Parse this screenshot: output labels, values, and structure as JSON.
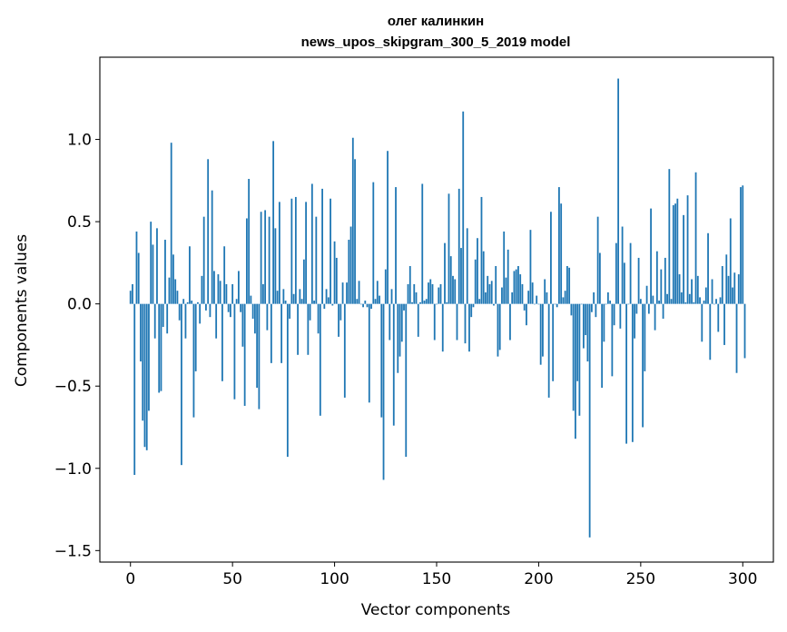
{
  "chart_data": {
    "type": "bar",
    "title": "олег калинкин",
    "subtitle": "news_upos_skipgram_300_5_2019 model",
    "xlabel": "Vector components",
    "ylabel": "Components values",
    "xlim": [
      -15,
      315
    ],
    "ylim": [
      -1.57,
      1.5
    ],
    "x_ticks": [
      0,
      50,
      100,
      150,
      200,
      250,
      300
    ],
    "y_ticks": [
      -1.5,
      -1.0,
      -0.5,
      0.0,
      0.5,
      1.0
    ],
    "y_tick_labels": [
      "−1.5",
      "−1.0",
      "−0.5",
      "0.0",
      "0.5",
      "1.0"
    ],
    "bar_color": "#1f77b4",
    "values": [
      0.08,
      0.12,
      -1.04,
      0.44,
      0.31,
      -0.35,
      -0.71,
      -0.87,
      -0.89,
      -0.65,
      0.5,
      0.36,
      -0.21,
      0.46,
      -0.54,
      -0.53,
      -0.14,
      0.39,
      -0.18,
      0.16,
      0.98,
      0.3,
      0.15,
      0.08,
      -0.1,
      -0.98,
      0.03,
      -0.21,
      0.01,
      0.35,
      0.02,
      -0.69,
      -0.41,
      0.01,
      -0.12,
      0.17,
      0.53,
      -0.04,
      0.88,
      -0.08,
      0.69,
      0.2,
      -0.21,
      0.18,
      0.14,
      -0.47,
      0.35,
      0.12,
      -0.05,
      -0.08,
      0.12,
      -0.58,
      0.03,
      0.2,
      -0.05,
      -0.26,
      -0.62,
      0.52,
      0.76,
      0.05,
      -0.09,
      -0.18,
      -0.51,
      -0.64,
      0.56,
      0.12,
      0.57,
      -0.16,
      0.53,
      -0.36,
      0.99,
      0.46,
      0.08,
      0.62,
      -0.36,
      0.09,
      0.02,
      -0.93,
      -0.09,
      0.64,
      0.06,
      0.65,
      -0.31,
      0.09,
      0.03,
      0.27,
      0.62,
      -0.31,
      -0.1,
      0.73,
      0.02,
      0.53,
      -0.18,
      -0.68,
      0.7,
      -0.03,
      0.09,
      0.04,
      0.64,
      -0.01,
      0.38,
      0.28,
      -0.2,
      -0.1,
      0.13,
      -0.57,
      0.13,
      0.39,
      0.47,
      1.01,
      0.88,
      0.03,
      0.14,
      0.0,
      -0.02,
      0.02,
      -0.02,
      -0.6,
      -0.03,
      0.74,
      0.03,
      0.14,
      0.05,
      -0.69,
      -1.07,
      0.21,
      0.93,
      -0.22,
      0.09,
      -0.74,
      0.71,
      -0.42,
      -0.32,
      -0.23,
      -0.04,
      -0.93,
      0.12,
      0.23,
      0.01,
      0.12,
      0.07,
      -0.2,
      0.01,
      0.73,
      0.02,
      0.03,
      0.13,
      0.15,
      0.12,
      -0.22,
      0.0,
      0.1,
      0.12,
      -0.29,
      0.37,
      0.01,
      0.67,
      0.29,
      0.17,
      0.15,
      -0.22,
      0.7,
      0.34,
      1.17,
      -0.24,
      0.46,
      -0.29,
      -0.08,
      -0.02,
      0.27,
      0.4,
      0.03,
      0.65,
      0.32,
      0.07,
      0.17,
      0.12,
      0.14,
      -0.01,
      0.23,
      -0.32,
      -0.28,
      0.1,
      0.44,
      0.16,
      0.33,
      -0.22,
      0.07,
      0.2,
      0.21,
      0.23,
      0.18,
      0.12,
      -0.04,
      -0.13,
      0.08,
      0.45,
      0.13,
      0.0,
      0.05,
      0.0,
      -0.37,
      -0.32,
      0.15,
      0.07,
      -0.57,
      0.56,
      -0.47,
      0.0,
      -0.02,
      0.71,
      0.61,
      0.04,
      0.08,
      0.23,
      0.22,
      -0.07,
      -0.65,
      -0.82,
      -0.47,
      -0.68,
      0.0,
      -0.27,
      -0.19,
      -0.35,
      -1.42,
      -0.05,
      0.07,
      -0.08,
      0.53,
      0.31,
      -0.51,
      -0.23,
      0.0,
      0.07,
      0.02,
      -0.44,
      -0.13,
      0.37,
      1.37,
      -0.15,
      0.47,
      0.25,
      -0.85,
      0.0,
      0.37,
      -0.84,
      -0.21,
      -0.06,
      0.28,
      0.03,
      -0.75,
      -0.41,
      0.11,
      -0.06,
      0.58,
      0.05,
      -0.16,
      0.32,
      0.02,
      0.21,
      -0.09,
      0.28,
      0.06,
      0.82,
      0.03,
      0.6,
      0.61,
      0.64,
      0.18,
      0.07,
      0.54,
      0.01,
      0.66,
      0.06,
      0.15,
      0.01,
      0.8,
      0.17,
      0.04,
      -0.23,
      0.02,
      0.1,
      0.43,
      -0.34,
      0.15,
      0.0,
      0.03,
      -0.17,
      0.04,
      0.23,
      -0.25,
      0.3,
      0.17,
      0.52,
      0.1,
      0.19,
      -0.42,
      0.18,
      0.71,
      0.72,
      -0.33
    ]
  }
}
